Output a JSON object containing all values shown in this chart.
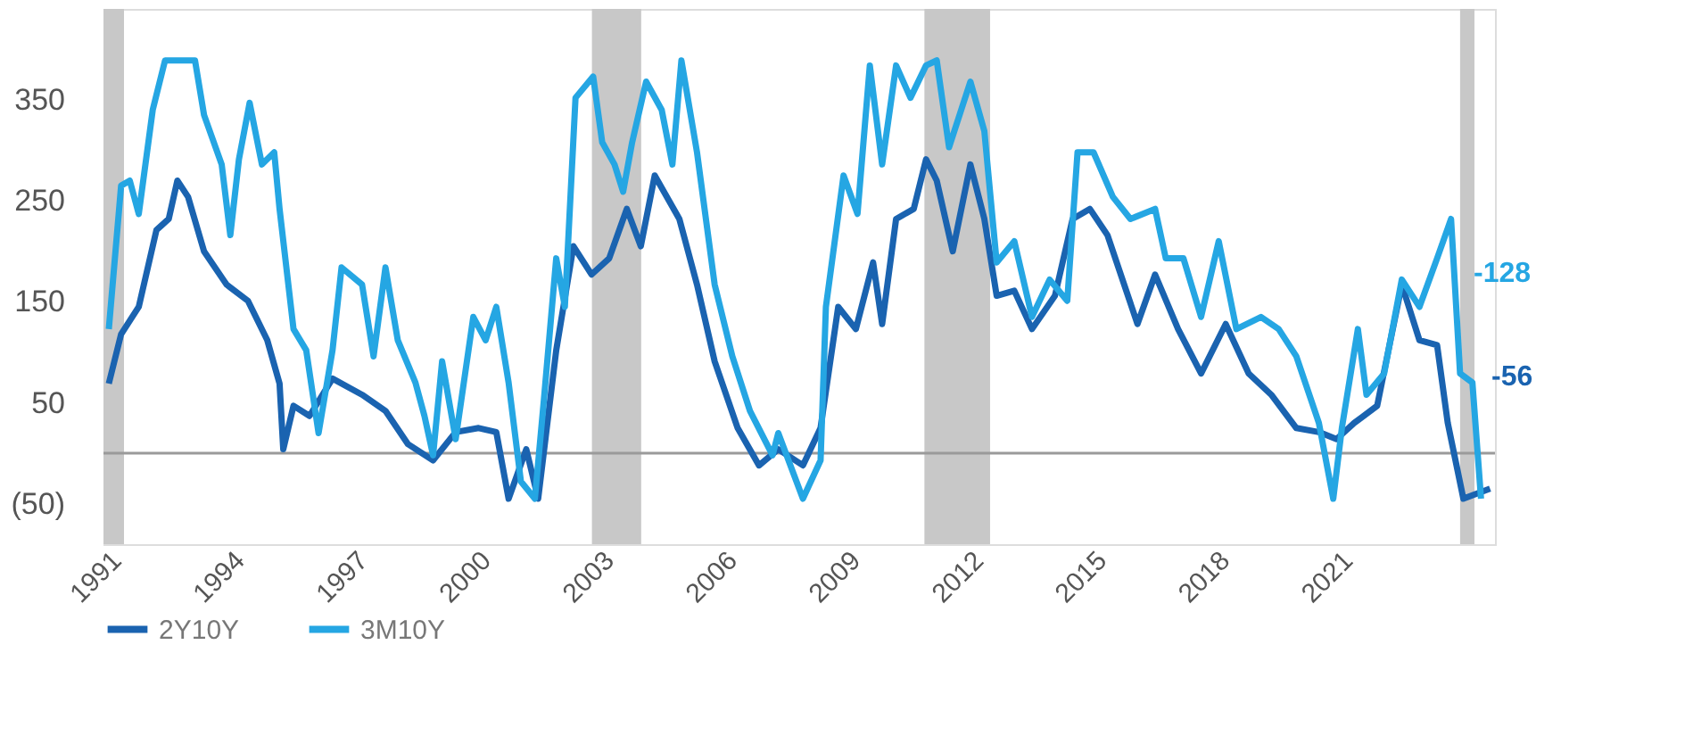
{
  "chart_data": {
    "type": "line",
    "series": [
      {
        "name": "2Y10Y",
        "color": "#1a63b0",
        "x": [
          1990.83,
          1991.13,
          1991.56,
          1991.99,
          1992.29,
          1992.5,
          1992.76,
          1993.15,
          1993.7,
          1994.22,
          1994.69,
          1994.99,
          1995.08,
          1995.33,
          1995.72,
          1996.28,
          1997.0,
          1997.57,
          1998.12,
          1998.73,
          1999.28,
          1999.84,
          2000.27,
          2000.57,
          2001.0,
          2001.29,
          2001.73,
          2002.15,
          2002.59,
          2003.02,
          2003.45,
          2003.79,
          2004.13,
          2004.73,
          2005.16,
          2005.59,
          2006.15,
          2006.67,
          2007.14,
          2007.74,
          2008.17,
          2008.6,
          2009.03,
          2009.45,
          2009.67,
          2010.01,
          2010.44,
          2010.74,
          2011.0,
          2011.39,
          2011.82,
          2012.16,
          2012.46,
          2012.89,
          2013.32,
          2013.88,
          2014.31,
          2014.73,
          2015.16,
          2015.89,
          2016.32,
          2016.88,
          2017.44,
          2018.04,
          2018.6,
          2019.15,
          2019.76,
          2020.31,
          2020.74,
          2021.17,
          2021.73,
          2022.33,
          2022.76,
          2023.19,
          2023.45,
          2023.83,
          2024.48
        ],
        "values": [
          69,
          118,
          145,
          221,
          232,
          270,
          254,
          200,
          167,
          151,
          112,
          69,
          4,
          47,
          37,
          74,
          58,
          42,
          9,
          -7,
          21,
          25,
          21,
          -45,
          4,
          -45,
          102,
          205,
          177,
          193,
          242,
          205,
          275,
          232,
          167,
          91,
          25,
          -12,
          4,
          -12,
          25,
          145,
          123,
          189,
          128,
          232,
          242,
          291,
          270,
          200,
          286,
          232,
          156,
          161,
          123,
          156,
          232,
          242,
          216,
          128,
          177,
          123,
          79,
          128,
          79,
          58,
          25,
          21,
          14,
          30,
          47,
          167,
          112,
          107,
          30,
          -45,
          -35
        ]
      },
      {
        "name": "3M10Y",
        "color": "#25a6e3",
        "x": [
          1990.83,
          1991.13,
          1991.34,
          1991.56,
          1991.9,
          1992.2,
          1992.55,
          1992.93,
          1993.15,
          1993.58,
          1993.79,
          1994.0,
          1994.26,
          1994.56,
          1994.86,
          1994.99,
          1995.33,
          1995.64,
          1995.94,
          1996.28,
          1996.5,
          1997.0,
          1997.28,
          1997.57,
          1997.87,
          1998.3,
          1998.52,
          1998.73,
          1998.95,
          1999.28,
          1999.71,
          2000.01,
          2000.27,
          2000.57,
          2000.87,
          2001.21,
          2001.43,
          2001.73,
          2001.94,
          2002.2,
          2002.63,
          2002.85,
          2003.15,
          2003.36,
          2003.58,
          2003.92,
          2004.3,
          2004.56,
          2004.78,
          2005.16,
          2005.59,
          2006.02,
          2006.45,
          2007.0,
          2007.14,
          2007.74,
          2008.17,
          2008.3,
          2008.73,
          2009.07,
          2009.37,
          2009.67,
          2010.01,
          2010.36,
          2010.74,
          2011.0,
          2011.3,
          2011.82,
          2012.16,
          2012.46,
          2012.89,
          2013.32,
          2013.75,
          2014.18,
          2014.43,
          2014.82,
          2015.29,
          2015.72,
          2016.32,
          2016.58,
          2017.01,
          2017.44,
          2017.87,
          2018.3,
          2018.9,
          2019.33,
          2019.76,
          2020.31,
          2020.66,
          2020.87,
          2021.26,
          2021.47,
          2021.9,
          2022.33,
          2022.76,
          2023.19,
          2023.53,
          2023.75,
          2024.05,
          2024.26
        ],
        "values": [
          123,
          265,
          270,
          237,
          340,
          389,
          389,
          389,
          335,
          286,
          216,
          291,
          347,
          286,
          298,
          242,
          123,
          102,
          20,
          102,
          184,
          167,
          96,
          184,
          112,
          70,
          37,
          -2,
          91,
          14,
          135,
          112,
          145,
          70,
          -28,
          -45,
          53,
          193,
          145,
          352,
          373,
          308,
          286,
          259,
          308,
          368,
          340,
          286,
          389,
          298,
          167,
          96,
          42,
          -2,
          20,
          -45,
          -7,
          145,
          275,
          237,
          384,
          286,
          384,
          352,
          384,
          389,
          303,
          368,
          319,
          189,
          210,
          135,
          172,
          151,
          298,
          298,
          254,
          232,
          242,
          193,
          193,
          135,
          210,
          123,
          135,
          123,
          96,
          30,
          -45,
          25,
          123,
          58,
          79,
          172,
          145,
          193,
          232,
          79,
          70,
          -45
        ]
      }
    ],
    "xlim": [
      1990.7,
      2024.6
    ],
    "xticks": [
      1991,
      1994,
      1997,
      2000,
      2003,
      2006,
      2009,
      2012,
      2015,
      2018,
      2021
    ],
    "ylim": [
      -90,
      440
    ],
    "yticks": [
      350,
      250,
      150,
      50,
      {
        "value": -50,
        "label": "(50)"
      }
    ],
    "bands": [
      {
        "axis": "x",
        "from": 1990.7,
        "to": 1991.2,
        "color": "#c8c8c8"
      },
      {
        "axis": "x",
        "from": 2002.6,
        "to": 2003.8,
        "color": "#c8c8c8"
      },
      {
        "axis": "x",
        "from": 2010.7,
        "to": 2012.3,
        "color": "#c8c8c8"
      },
      {
        "axis": "x",
        "from": 2023.75,
        "to": 2024.1,
        "color": "#c8c8c8"
      }
    ],
    "ref_lines": [
      {
        "axis": "y",
        "value": 0,
        "color": "#9a9a9a"
      }
    ],
    "annotations": [
      "-128",
      "-56"
    ],
    "legend": "bottom",
    "grid": false
  }
}
